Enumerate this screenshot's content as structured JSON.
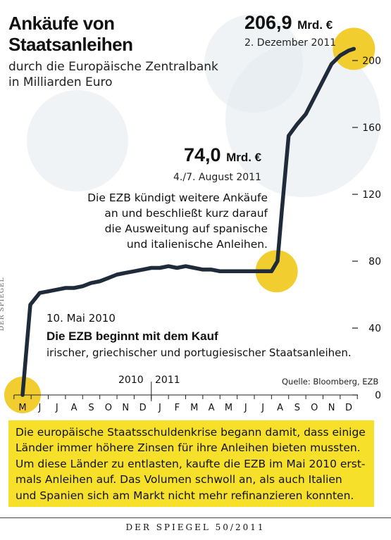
{
  "title_lines": [
    "Ankäufe von",
    "Staatsanleihen"
  ],
  "subtitle_lines": [
    "durch die Europäische Zentralbank",
    "in Milliarden Euro"
  ],
  "callout_end": {
    "value": "206,9",
    "unit": "Mrd. €",
    "date": "2. Dezember 2011"
  },
  "callout_mid": {
    "value": "74,0",
    "unit": "Mrd. €",
    "date": "4./7. August 2011",
    "text_lines": [
      "Die EZB kündigt weitere Ankäufe",
      "an und beschließt kurz darauf",
      "die Ausweitung auf spanische",
      "und italienische Anleihen."
    ]
  },
  "callout_start": {
    "date": "10. Mai 2010",
    "headline": "Die EZB beginnt mit dem Kauf",
    "text": "irischer, griechischer und portugiesischer Staatsanleihen."
  },
  "source": "Quelle: Bloomberg, EZB",
  "side_credit": "DER SPIEGEL",
  "info_lines": [
    "Die europäische Staatsschuldenkrise begann damit, dass einige",
    "Länder immer höhere Zinsen für ihre Anleihen bieten mussten.",
    "Um diese Länder zu entlasten, kaufte die EZB im Mai 2010 erst-",
    "mals Anleihen auf. Das Volumen schwoll an, als auch Italien",
    "und Spanien sich am Markt nicht mehr refinanzieren konnten."
  ],
  "footer": "DER SPIEGEL 50/2011",
  "colors": {
    "line": "#1f2b3a",
    "highlight": "#f2cd2f",
    "info_box": "#f6e02a",
    "background_circles": "#e3e9ef"
  },
  "chart_data": {
    "type": "line",
    "x_labels": [
      "M",
      "J",
      "J",
      "A",
      "S",
      "O",
      "N",
      "D",
      "J",
      "F",
      "M",
      "A",
      "M",
      "J",
      "J",
      "A",
      "S",
      "O",
      "N",
      "D"
    ],
    "year_labels": [
      "2010",
      "2011"
    ],
    "yticks": [
      0,
      40,
      80,
      120,
      160,
      200
    ],
    "ylim": [
      0,
      215
    ],
    "grid": false,
    "series": [
      {
        "x": [
          0,
          0.45,
          1.0,
          1.5,
          2.0,
          2.5,
          3.0,
          3.5,
          4.0,
          4.5,
          5.0,
          5.5,
          6.0,
          6.5,
          7.0,
          7.5,
          8.0,
          8.5,
          9.0,
          9.5,
          10.0,
          10.5,
          11.0,
          11.5,
          12.0,
          12.5,
          13.0,
          13.5,
          14.0,
          14.5,
          14.85,
          15.1,
          15.5,
          16.0,
          16.5,
          17.0,
          17.5,
          18.0,
          18.5,
          19.0,
          19.3
        ],
        "values": [
          0,
          54,
          61,
          62,
          63,
          64,
          64,
          65,
          67,
          68,
          70,
          72,
          73,
          74,
          75,
          76,
          76,
          77,
          76,
          77,
          76,
          75,
          75,
          74,
          74,
          74,
          74,
          74,
          74,
          74,
          80,
          110,
          155,
          162,
          168,
          178,
          188,
          198,
          203,
          206,
          207
        ]
      }
    ],
    "highlights": [
      {
        "x": 0,
        "y": 0
      },
      {
        "x": 14.8,
        "y": 74
      },
      {
        "x": 19.3,
        "y": 207
      }
    ]
  }
}
